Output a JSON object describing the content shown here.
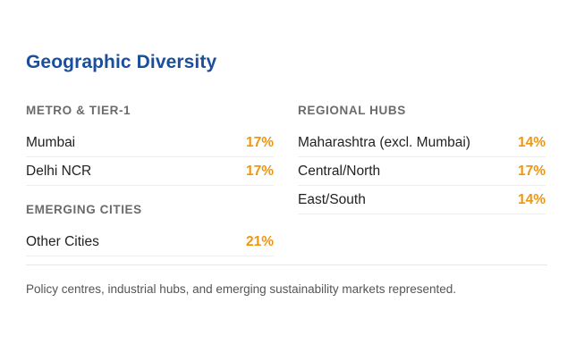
{
  "title": "Geographic Diversity",
  "left": {
    "groups": [
      {
        "heading": "METRO & TIER-1",
        "items": [
          {
            "label": "Mumbai",
            "value": "17%"
          },
          {
            "label": "Delhi NCR",
            "value": "17%"
          }
        ]
      },
      {
        "heading": "EMERGING CITIES",
        "items": [
          {
            "label": "Other Cities",
            "value": "21%"
          }
        ]
      }
    ]
  },
  "right": {
    "groups": [
      {
        "heading": "REGIONAL HUBS",
        "items": [
          {
            "label": "Maharashtra (excl. Mumbai)",
            "value": "14%"
          },
          {
            "label": "Central/North",
            "value": "17%"
          },
          {
            "label": "East/South",
            "value": "14%"
          }
        ]
      }
    ]
  },
  "footnote": "Policy centres, industrial hubs, and emerging sustainability markets represented.",
  "colors": {
    "title": "#1a4f9c",
    "value": "#f0960f",
    "heading": "#6b6b6b"
  }
}
